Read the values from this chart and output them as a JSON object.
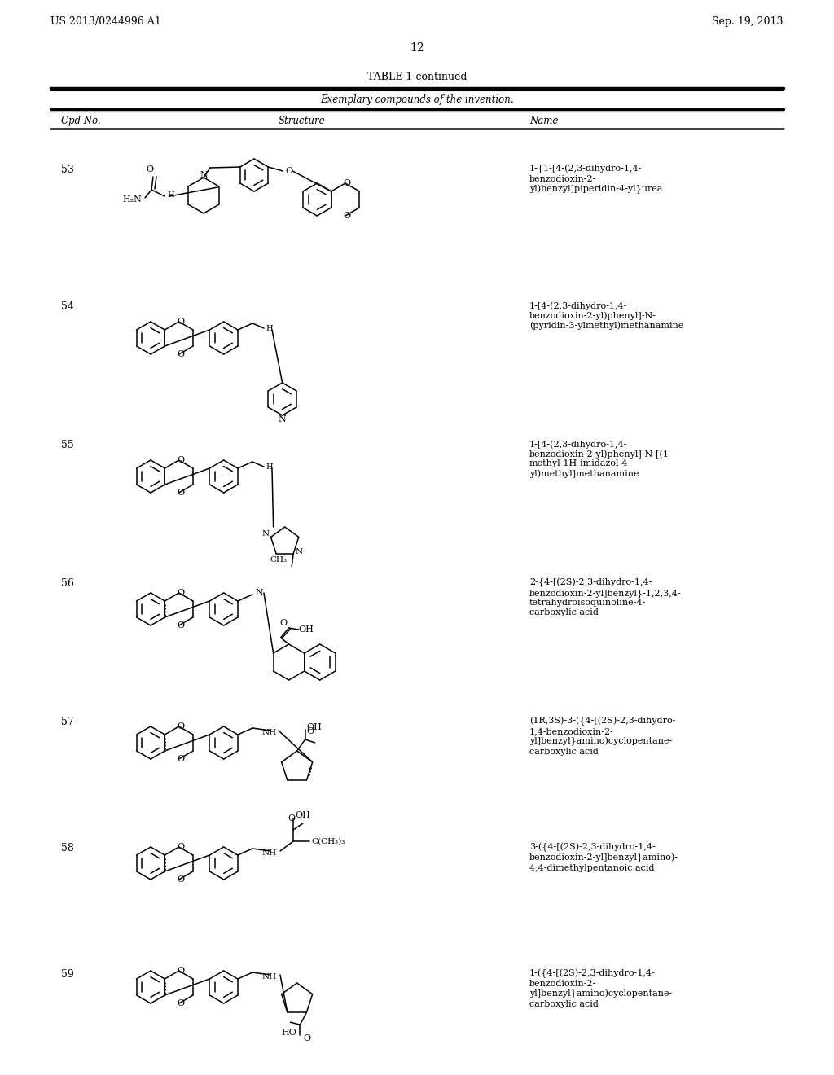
{
  "title_left": "US 2013/0244996 A1",
  "title_right": "Sep. 19, 2013",
  "page_number": "12",
  "table_title": "TABLE 1-continued",
  "table_subtitle": "Exemplary compounds of the invention.",
  "col_headers": [
    "Cpd No.",
    "Structure",
    "Name"
  ],
  "compound_nums": [
    "53",
    "54",
    "55",
    "56",
    "57",
    "58",
    "59"
  ],
  "compound_names": [
    "1-{1-[4-(2,3-dihydro-1,4-\nbenzodioxin-2-\nyl)benzyl]piperidin-4-yl}urea",
    "1-[4-(2,3-dihydro-1,4-\nbenzodioxin-2-yl)phenyl]-N-\n(pyridin-3-ylmethyl)methanamine",
    "1-[4-(2,3-dihydro-1,4-\nbenzodioxin-2-yl)phenyl]-N-[(1-\nmethyl-1H-imidazol-4-\nyl)methyl]methanamine",
    "2-{4-[(2S)-2,3-dihydro-1,4-\nbenzodioxin-2-yl]benzyl}-1,2,3,4-\ntetrahydroisoquinoline-4-\ncarboxylic acid",
    "(1R,3S)-3-({4-[(2S)-2,3-dihydro-\n1,4-benzodioxin-2-\nyl]benzyl}amino)cyclopentane-\ncarboxylic acid",
    "3-({4-[(2S)-2,3-dihydro-1,4-\nbenzodioxin-2-yl]benzyl}amino)-\n4,4-dimethylpentanoic acid",
    "1-({4-[(2S)-2,3-dihydro-1,4-\nbenzodioxin-2-\nyl]benzyl}amino)cyclopentane-\ncarboxylic acid"
  ],
  "row_tops": [
    1128,
    960,
    790,
    620,
    450,
    295,
    140
  ],
  "bg_color": "#ffffff",
  "lw": 1.1
}
